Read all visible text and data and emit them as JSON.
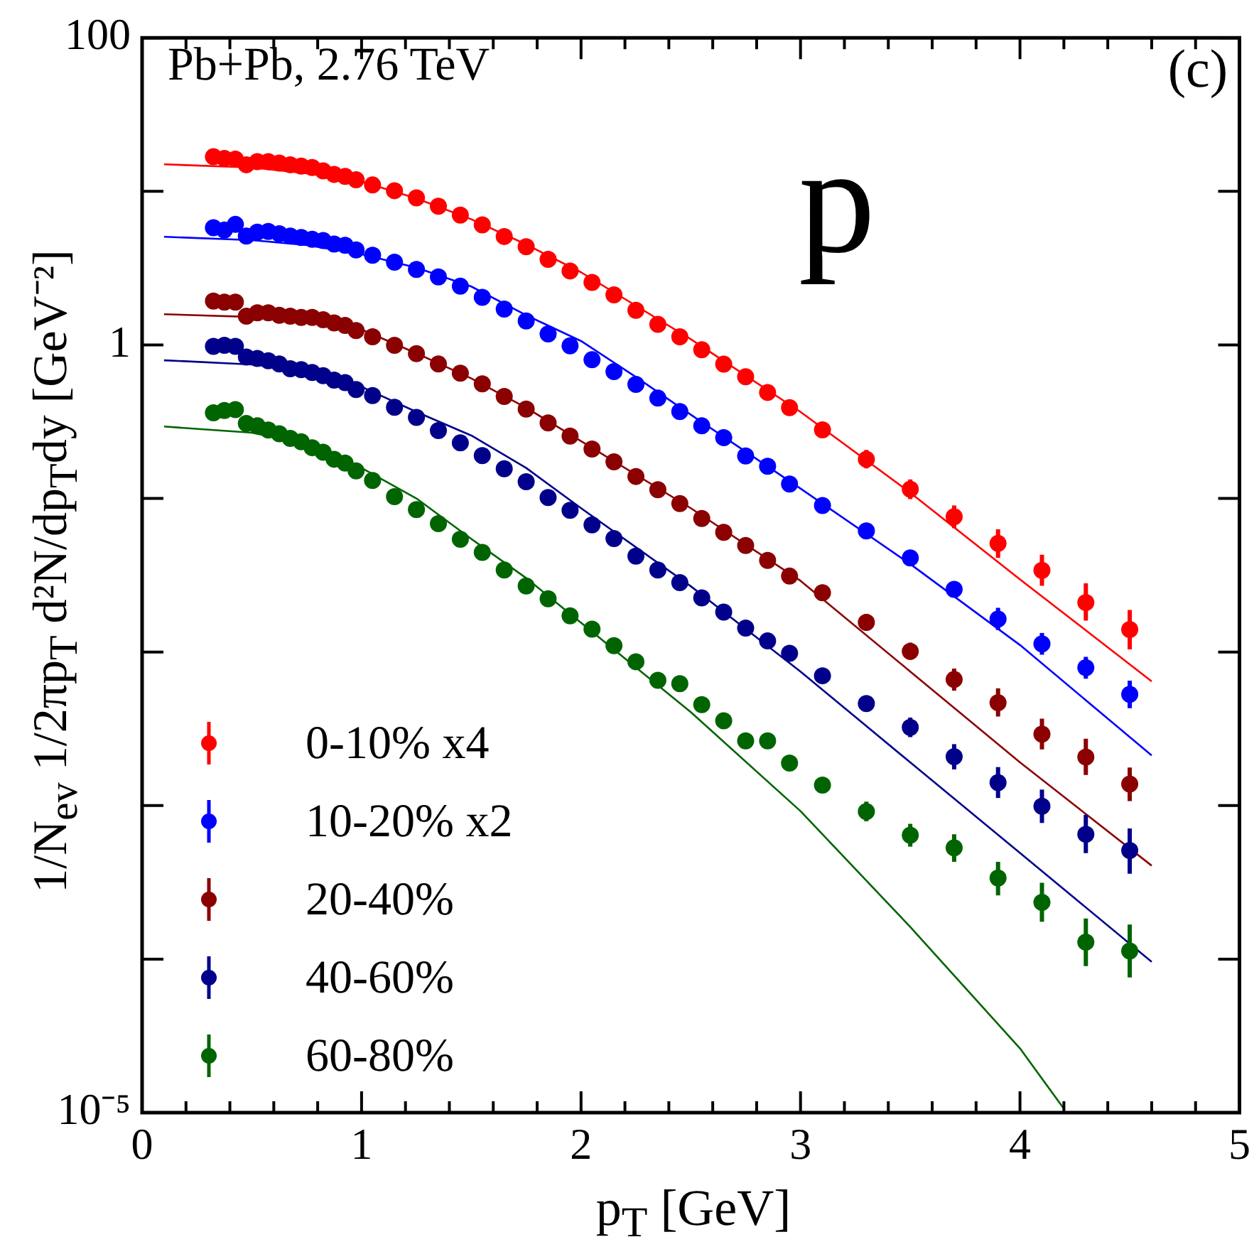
{
  "chart_data": {
    "type": "scatter",
    "xlabel": "p$_{T}$ [GeV]",
    "ylabel": "1/N$_{ev}$ 1/2πp$_{T}$ d²N/dp$_{T}$dy [GeV⁻²]",
    "annotations": [
      "Pb+Pb, 2.76 TeV",
      "(c)",
      "p"
    ],
    "log": "y",
    "xlim": [
      0,
      5
    ],
    "ylim": [
      1e-05,
      100
    ],
    "xticks": [
      0,
      {
        "value": 0.2,
        "label": null
      },
      {
        "value": 0.4,
        "label": null
      },
      {
        "value": 0.6,
        "label": null
      },
      {
        "value": 0.8,
        "label": null
      },
      1,
      {
        "value": 1.2,
        "label": null
      },
      {
        "value": 1.4,
        "label": null
      },
      {
        "value": 1.6,
        "label": null
      },
      {
        "value": 1.8,
        "label": null
      },
      2,
      {
        "value": 2.2,
        "label": null
      },
      {
        "value": 2.4,
        "label": null
      },
      {
        "value": 2.6,
        "label": null
      },
      {
        "value": 2.8,
        "label": null
      },
      3,
      {
        "value": 3.2,
        "label": null
      },
      {
        "value": 3.4,
        "label": null
      },
      {
        "value": 3.6,
        "label": null
      },
      {
        "value": 3.8,
        "label": null
      },
      4,
      {
        "value": 4.2,
        "label": null
      },
      {
        "value": 4.4,
        "label": null
      },
      {
        "value": 4.6,
        "label": null
      },
      {
        "value": 4.8,
        "label": null
      },
      5
    ],
    "yticks": [
      {
        "value": 1e-05,
        "label": "10⁻⁵"
      },
      {
        "value": 0.0001,
        "label": null
      },
      {
        "value": 0.001,
        "label": null
      },
      {
        "value": 0.01,
        "label": null
      },
      {
        "value": 0.1,
        "label": null
      },
      1,
      {
        "value": 10,
        "label": null
      },
      100
    ],
    "legend": "bottom left",
    "marker": "circle",
    "x": [
      0.325,
      0.375,
      0.425,
      0.475,
      0.525,
      0.575,
      0.625,
      0.675,
      0.725,
      0.775,
      0.825,
      0.875,
      0.925,
      0.975,
      1.05,
      1.15,
      1.25,
      1.35,
      1.45,
      1.55,
      1.65,
      1.75,
      1.85,
      1.95,
      2.05,
      2.15,
      2.25,
      2.35,
      2.45,
      2.55,
      2.65,
      2.75,
      2.85,
      2.95,
      3.1,
      3.3,
      3.5,
      3.7,
      3.9,
      4.1,
      4.3,
      4.5
    ],
    "series": [
      {
        "name": "0-10% x4",
        "color": "#ff0000",
        "values": [
          16.8,
          16.4,
          16.2,
          14.9,
          15.6,
          15.6,
          15.3,
          14.9,
          14.6,
          14.3,
          13.6,
          12.9,
          12.5,
          11.9,
          11.0,
          10.1,
          9.06,
          8.0,
          7.0,
          6.05,
          5.08,
          4.36,
          3.61,
          3.03,
          2.55,
          2.12,
          1.68,
          1.36,
          1.13,
          0.93,
          0.75,
          0.62,
          0.49,
          0.39,
          0.28,
          0.18,
          0.115,
          0.076,
          0.051,
          0.034,
          0.021,
          0.014
        ],
        "errors": [
          null,
          null,
          null,
          null,
          null,
          null,
          null,
          null,
          null,
          null,
          null,
          null,
          null,
          null,
          null,
          null,
          null,
          null,
          null,
          null,
          null,
          null,
          null,
          null,
          null,
          null,
          null,
          null,
          null,
          null,
          null,
          null,
          null,
          null,
          null,
          [
            0.157,
            0.207
          ],
          [
            0.099,
            0.133
          ],
          [
            0.064,
            0.09
          ],
          [
            0.041,
            0.063
          ],
          [
            0.027,
            0.043
          ],
          [
            0.016,
            0.028
          ],
          [
            0.0104,
            0.0188
          ]
        ]
      },
      {
        "name": "10-20% x2",
        "color": "#0000ff",
        "values": [
          5.8,
          5.6,
          6.09,
          5.12,
          5.42,
          5.48,
          5.3,
          5.12,
          5.01,
          4.88,
          4.78,
          4.54,
          4.45,
          4.15,
          3.84,
          3.46,
          3.1,
          2.77,
          2.41,
          2.04,
          1.71,
          1.43,
          1.18,
          0.985,
          0.8,
          0.67,
          0.553,
          0.45,
          0.368,
          0.297,
          0.249,
          0.189,
          0.162,
          0.124,
          0.09,
          0.0615,
          0.041,
          0.0256,
          0.0164,
          0.0113,
          0.0079,
          0.0053
        ],
        "errors": [
          null,
          null,
          null,
          null,
          null,
          null,
          null,
          null,
          null,
          null,
          null,
          null,
          null,
          null,
          null,
          null,
          null,
          null,
          null,
          null,
          null,
          null,
          null,
          null,
          null,
          null,
          null,
          null,
          null,
          null,
          null,
          null,
          null,
          null,
          null,
          [
            0.0554,
            0.0683
          ],
          [
            0.037,
            0.0455
          ],
          [
            0.023,
            0.0284
          ],
          [
            0.0139,
            0.0194
          ],
          [
            0.0096,
            0.0133
          ],
          [
            0.0067,
            0.0093
          ],
          [
            0.0043,
            0.0065
          ]
        ]
      },
      {
        "name": "20-40%",
        "color": "#8b0000",
        "values": [
          1.93,
          1.9,
          1.9,
          1.54,
          1.62,
          1.62,
          1.56,
          1.54,
          1.51,
          1.51,
          1.46,
          1.39,
          1.34,
          1.24,
          1.13,
          0.994,
          0.877,
          0.751,
          0.654,
          0.557,
          0.461,
          0.382,
          0.31,
          0.255,
          0.21,
          0.173,
          0.139,
          0.114,
          0.0926,
          0.0741,
          0.0601,
          0.0494,
          0.0395,
          0.0312,
          0.0243,
          0.0156,
          0.0101,
          0.00662,
          0.00468,
          0.00292,
          0.00207,
          0.00138
        ],
        "errors": [
          null,
          null,
          null,
          null,
          null,
          null,
          null,
          null,
          null,
          null,
          null,
          null,
          null,
          null,
          null,
          null,
          null,
          null,
          null,
          null,
          null,
          null,
          null,
          null,
          null,
          null,
          null,
          null,
          null,
          null,
          null,
          null,
          null,
          null,
          null,
          [
            0.0138,
            0.0177
          ],
          [
            0.0089,
            0.0115
          ],
          [
            0.0056,
            0.0078
          ],
          [
            0.0038,
            0.0058
          ],
          [
            0.00232,
            0.00368
          ],
          [
            0.00158,
            0.00272
          ],
          [
            0.00107,
            0.00177
          ]
        ]
      },
      {
        "name": "40-60%",
        "color": "#00008b",
        "values": [
          0.979,
          0.994,
          0.979,
          0.834,
          0.816,
          0.789,
          0.751,
          0.7,
          0.69,
          0.662,
          0.631,
          0.589,
          0.568,
          0.512,
          0.468,
          0.392,
          0.337,
          0.277,
          0.23,
          0.19,
          0.156,
          0.1285,
          0.1015,
          0.0837,
          0.0672,
          0.0548,
          0.0421,
          0.0342,
          0.0283,
          0.0225,
          0.0182,
          0.0143,
          0.0118,
          0.0098,
          0.007,
          0.00461,
          0.00323,
          0.00208,
          0.00141,
          0.00099,
          0.00065,
          0.00051
        ],
        "errors": [
          null,
          null,
          null,
          null,
          null,
          null,
          null,
          null,
          null,
          null,
          null,
          null,
          null,
          null,
          null,
          null,
          null,
          null,
          null,
          null,
          null,
          null,
          null,
          null,
          null,
          null,
          null,
          null,
          null,
          null,
          null,
          null,
          null,
          null,
          null,
          [
            0.00415,
            0.00512
          ],
          [
            0.00279,
            0.00374
          ],
          [
            0.00172,
            0.00251
          ],
          [
            0.00112,
            0.00178
          ],
          [
            0.00077,
            0.00127
          ],
          [
            0.00049,
            0.00087
          ],
          [
            0.00036,
            0.00071
          ]
        ]
      },
      {
        "name": "60-80%",
        "color": "#006400",
        "values": [
          0.361,
          0.374,
          0.379,
          0.308,
          0.297,
          0.279,
          0.264,
          0.246,
          0.234,
          0.214,
          0.2,
          0.18,
          0.17,
          0.151,
          0.131,
          0.1027,
          0.0846,
          0.0686,
          0.0542,
          0.0445,
          0.0342,
          0.0269,
          0.0222,
          0.0172,
          0.0141,
          0.011,
          0.00864,
          0.00654,
          0.00622,
          0.00454,
          0.00356,
          0.00264,
          0.00264,
          0.00189,
          0.00136,
          0.000914,
          0.000641,
          0.000531,
          0.000337,
          0.000234,
          0.000129,
          0.000113
        ],
        "errors": [
          null,
          null,
          null,
          null,
          null,
          null,
          null,
          null,
          null,
          null,
          null,
          null,
          null,
          null,
          null,
          null,
          null,
          null,
          null,
          null,
          null,
          null,
          null,
          null,
          null,
          null,
          null,
          null,
          null,
          null,
          null,
          null,
          null,
          null,
          null,
          [
            0.00079,
            0.00106
          ],
          [
            0.00054,
            0.00076
          ],
          [
            0.00043,
            0.00065
          ],
          [
            0.00026,
            0.00043
          ],
          [
            0.000175,
            0.000314
          ],
          [
            9e-05,
            0.000184
          ],
          [
            7.6e-05,
            0.000168
          ]
        ]
      },
      {
        "type": "line",
        "marker": "none",
        "color": "#ff0000",
        "x": [
          0.1,
          0.5,
          0.75,
          1.0,
          1.25,
          1.5,
          1.75,
          2.0,
          2.25,
          2.5,
          3.0,
          3.5,
          4.0,
          4.6
        ],
        "values": [
          15.0,
          14.3,
          13.1,
          11.6,
          9.0,
          6.58,
          4.51,
          2.97,
          1.8,
          1.09,
          0.366,
          0.109,
          0.0297,
          0.00644
        ]
      },
      {
        "type": "line",
        "marker": "none",
        "color": "#0000ff",
        "x": [
          0.1,
          0.5,
          0.75,
          1.0,
          1.25,
          1.5,
          1.75,
          2.0,
          2.25,
          2.5,
          3.0,
          3.5,
          4.0,
          4.6
        ],
        "values": [
          5.06,
          4.81,
          4.47,
          3.9,
          3.18,
          2.4,
          1.56,
          1.06,
          0.618,
          0.351,
          0.116,
          0.0374,
          0.0111,
          0.00212
        ]
      },
      {
        "type": "line",
        "marker": "none",
        "color": "#8b0000",
        "x": [
          0.1,
          0.5,
          0.75,
          1.0,
          1.25,
          1.5,
          1.75,
          2.0,
          2.5,
          3.0,
          3.5,
          4.0,
          4.6
        ],
        "values": [
          1.585,
          1.52,
          1.43,
          1.26,
          0.882,
          0.605,
          0.39,
          0.236,
          0.0864,
          0.0291,
          0.00746,
          0.00191,
          0.000406
        ]
      },
      {
        "type": "line",
        "marker": "none",
        "color": "#00008b",
        "x": [
          0.1,
          0.5,
          0.75,
          1.0,
          1.25,
          1.5,
          1.75,
          2.0,
          2.5,
          3.0,
          3.5,
          4.0,
          4.6
        ],
        "values": [
          0.794,
          0.746,
          0.686,
          0.534,
          0.366,
          0.257,
          0.158,
          0.0864,
          0.0268,
          0.00746,
          0.00191,
          0.000491,
          9.59e-05
        ]
      },
      {
        "type": "line",
        "marker": "none",
        "color": "#006400",
        "x": [
          0.1,
          0.5,
          0.75,
          1.0,
          1.25,
          1.5,
          1.75,
          2.0,
          2.5,
          3.0,
          3.5,
          4.0,
          4.2
        ],
        "values": [
          0.294,
          0.268,
          0.226,
          0.158,
          0.1,
          0.0545,
          0.0303,
          0.0155,
          0.00406,
          0.00092,
          0.000162,
          2.62e-05,
          1.06e-05
        ]
      }
    ]
  }
}
